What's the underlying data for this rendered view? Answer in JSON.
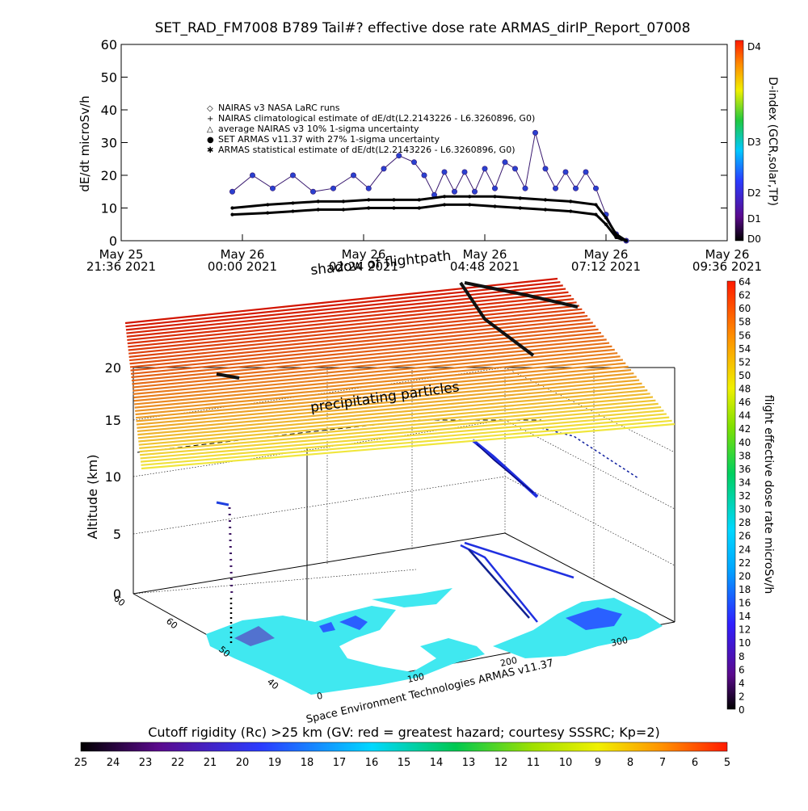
{
  "chart_data": [
    {
      "type": "line",
      "title": "SET_RAD_FM7008  B789 Tail#? effective dose rate ARMAS_dirIP_Report_07008",
      "ylabel": "dE/dt microSv/h",
      "ylim": [
        0,
        60
      ],
      "y_ticks": [
        "0",
        "10",
        "20",
        "30",
        "40",
        "50",
        "60"
      ],
      "x_tick_labels": [
        [
          "May 25",
          "21:36 2021"
        ],
        [
          "May 26",
          "00:00 2021"
        ],
        [
          "May 26",
          "02:24 2021"
        ],
        [
          "May 26",
          "04:48 2021"
        ],
        [
          "May 26",
          "07:12 2021"
        ],
        [
          "May 26",
          "09:36 2021"
        ]
      ],
      "x_range_hours": [
        -2.4,
        9.6
      ],
      "legend": [
        {
          "symbol": "◇",
          "label": "NAIRAS v3 NASA LaRC runs"
        },
        {
          "symbol": "+",
          "label": "NAIRAS climatological estimate of dE/dt(L2.2143226 - L6.3260896, G0)"
        },
        {
          "symbol": "△",
          "label": "average NAIRAS v3 10% 1-sigma uncertainty"
        },
        {
          "symbol": "●",
          "label": "SET ARMAS v11.37 with 27% 1-sigma uncertainty"
        },
        {
          "symbol": "✱",
          "label": "ARMAS statistical estimate of dE/dt(L2.2143226 - L6.3260896, G0)"
        }
      ],
      "right_axis": {
        "label": "D-index (GCR,solar,TP)",
        "ticks": [
          "D4",
          "D3",
          "D2",
          "D1",
          "D0"
        ]
      },
      "series": [
        {
          "name": "SET ARMAS v11.37 with 27% 1-sigma uncertainty",
          "x": [
            -0.2,
            0.2,
            0.6,
            1.0,
            1.4,
            1.8,
            2.2,
            2.5,
            2.8,
            3.1,
            3.4,
            3.6,
            3.8,
            4.0,
            4.2,
            4.4,
            4.6,
            4.8,
            5.0,
            5.2,
            5.4,
            5.6,
            5.8,
            6.0,
            6.2,
            6.4,
            6.6,
            6.8,
            7.0,
            7.2,
            7.4,
            7.6
          ],
          "y": [
            15,
            20,
            16,
            20,
            15,
            16,
            20,
            16,
            22,
            26,
            24,
            20,
            14,
            21,
            15,
            21,
            15,
            22,
            16,
            24,
            22,
            16,
            33,
            22,
            16,
            21,
            16,
            21,
            16,
            8,
            2,
            0
          ]
        },
        {
          "name": "NAIRAS climatological estimate of dE/dt(L2.2143226 - L6.3260896, G0)",
          "x": [
            -0.2,
            0.5,
            1.0,
            1.5,
            2.0,
            2.5,
            3.0,
            3.5,
            4.0,
            4.5,
            5.0,
            5.5,
            6.0,
            6.5,
            7.0,
            7.2,
            7.4,
            7.6
          ],
          "y": [
            10,
            11,
            11.5,
            12,
            12,
            12.5,
            12.5,
            12.5,
            13.5,
            13.5,
            13.5,
            13,
            12.5,
            12,
            11,
            7,
            2,
            0
          ]
        },
        {
          "name": "ARMAS statistical estimate of dE/dt(L2.2143226 - L6.3260896, G0)",
          "x": [
            -0.2,
            0.5,
            1.0,
            1.5,
            2.0,
            2.5,
            3.0,
            3.5,
            4.0,
            4.5,
            5.0,
            5.5,
            6.0,
            6.5,
            7.0,
            7.2,
            7.4,
            7.6
          ],
          "y": [
            8,
            8.5,
            9,
            9.5,
            9.5,
            10,
            10,
            10,
            11,
            11,
            10.5,
            10,
            9.5,
            9,
            8,
            5,
            1,
            0
          ]
        }
      ]
    },
    {
      "type": "3d-flightpath",
      "zlabel": "Altitude (km)",
      "z_ticks": [
        "0",
        "5",
        "10",
        "15",
        "20"
      ],
      "lat_ticks": [
        "40",
        "50",
        "60",
        "60"
      ],
      "lon_ticks": [
        "0",
        "100",
        "200",
        "300"
      ],
      "annotations": [
        "shadow of flightpath",
        "precipitating particles"
      ],
      "credit": "Space Environment Technologies ARMAS v11.37",
      "colorbar_right": {
        "label": "flight effective dose rate microSv/h",
        "min": 0,
        "max": 64,
        "ticks": [
          "64",
          "62",
          "60",
          "58",
          "56",
          "54",
          "52",
          "50",
          "48",
          "46",
          "44",
          "42",
          "40",
          "38",
          "36",
          "34",
          "32",
          "30",
          "28",
          "26",
          "24",
          "22",
          "20",
          "18",
          "16",
          "14",
          "12",
          "10",
          "8",
          "6",
          "4",
          "2",
          "0"
        ]
      }
    },
    {
      "type": "colorbar",
      "title": "Cutoff rigidity (Rc) >25 km (GV: red = greatest hazard; courtesy SSSRC; Kp=2)",
      "ticks": [
        "25",
        "24",
        "23",
        "22",
        "21",
        "20",
        "19",
        "18",
        "17",
        "16",
        "15",
        "14",
        "13",
        "12",
        "11",
        "10",
        "9",
        "8",
        "7",
        "6",
        "5"
      ]
    }
  ]
}
